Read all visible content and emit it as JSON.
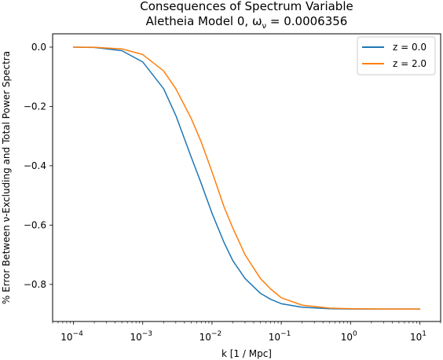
{
  "chart_data": {
    "type": "line",
    "title_line1": "Consequences of Spectrum Variable",
    "title_line2": "Aletheia Model 0, ω",
    "title_sub": "ν",
    "title_suffix": " = 0.0006356",
    "xlabel": "k [1 / Mpc]",
    "ylabel": "% Error Between ν-Excluding and Total Power Spectra",
    "xscale": "log",
    "xlim": [
      5e-05,
      20
    ],
    "ylim": [
      -0.925,
      0.045
    ],
    "x_ticks": [
      {
        "value": 0.0001,
        "base": "10",
        "exp": "−4"
      },
      {
        "value": 0.001,
        "base": "10",
        "exp": "−3"
      },
      {
        "value": 0.01,
        "base": "10",
        "exp": "−2"
      },
      {
        "value": 0.1,
        "base": "10",
        "exp": "−1"
      },
      {
        "value": 1,
        "base": "10",
        "exp": "0"
      },
      {
        "value": 10,
        "base": "10",
        "exp": "1"
      }
    ],
    "y_ticks": [
      {
        "value": 0.0,
        "label": "0.0"
      },
      {
        "value": -0.2,
        "label": "−0.2"
      },
      {
        "value": -0.4,
        "label": "−0.4"
      },
      {
        "value": -0.6,
        "label": "−0.6"
      },
      {
        "value": -0.8,
        "label": "−0.8"
      }
    ],
    "grid": false,
    "legend_position": "top-right",
    "series": [
      {
        "name": "z = 0.0",
        "color": "#1f77b4",
        "x": [
          0.0001,
          0.0002,
          0.0005,
          0.001,
          0.002,
          0.003,
          0.005,
          0.007,
          0.01,
          0.015,
          0.02,
          0.03,
          0.05,
          0.07,
          0.1,
          0.2,
          0.5,
          1,
          3,
          10
        ],
        "y": [
          0.0,
          -0.001,
          -0.012,
          -0.05,
          -0.14,
          -0.23,
          -0.37,
          -0.46,
          -0.56,
          -0.66,
          -0.72,
          -0.78,
          -0.83,
          -0.85,
          -0.865,
          -0.877,
          -0.882,
          -0.883,
          -0.883,
          -0.883
        ]
      },
      {
        "name": "z = 2.0",
        "color": "#ff7f0e",
        "x": [
          0.0001,
          0.0002,
          0.0005,
          0.001,
          0.002,
          0.003,
          0.005,
          0.007,
          0.01,
          0.015,
          0.02,
          0.03,
          0.05,
          0.07,
          0.1,
          0.2,
          0.5,
          1,
          3,
          10
        ],
        "y": [
          0.0,
          -0.0005,
          -0.006,
          -0.025,
          -0.08,
          -0.14,
          -0.24,
          -0.32,
          -0.42,
          -0.54,
          -0.61,
          -0.7,
          -0.78,
          -0.815,
          -0.845,
          -0.87,
          -0.88,
          -0.882,
          -0.883,
          -0.883
        ]
      }
    ]
  }
}
